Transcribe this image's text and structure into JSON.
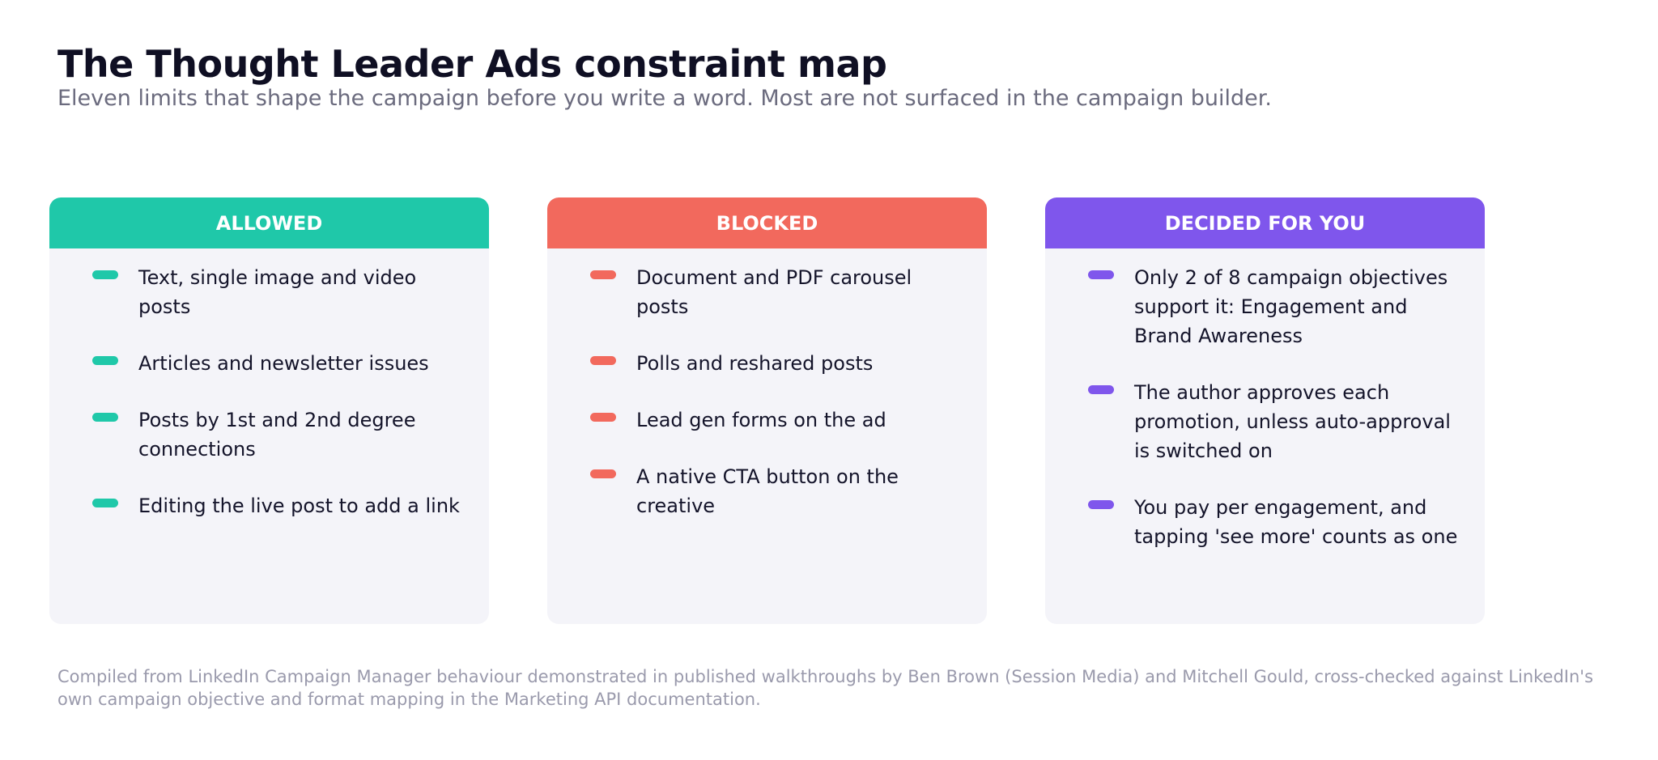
{
  "title": "The Thought Leader Ads constraint map",
  "subtitle": "Eleven limits that shape the campaign before you write a word. Most are not surfaced in the campaign builder.",
  "columns": [
    {
      "header": "ALLOWED",
      "color": "#1fc8a9",
      "items": [
        "Text, single image and video posts",
        "Articles and newsletter issues",
        "Posts by 1st and 2nd degree connections",
        "Editing the live post to add a link"
      ]
    },
    {
      "header": "BLOCKED",
      "color": "#f2695d",
      "items": [
        "Document and PDF carousel posts",
        "Polls and reshared posts",
        "Lead gen forms on the ad",
        "A native CTA button on the creative"
      ]
    },
    {
      "header": "DECIDED FOR YOU",
      "color": "#7f56ec",
      "items": [
        "Only 2 of 8 campaign objectives support it: Engagement and Brand Awareness",
        "The author approves each promotion, unless auto-approval is switched on",
        "You pay per engagement, and tapping 'see more' counts as one"
      ]
    }
  ],
  "footnote": "Compiled from LinkedIn Campaign Manager behaviour demonstrated in published walkthroughs by Ben Brown (Session Media) and Mitchell Gould, cross-checked against LinkedIn's own campaign objective and format mapping in the Marketing API documentation."
}
